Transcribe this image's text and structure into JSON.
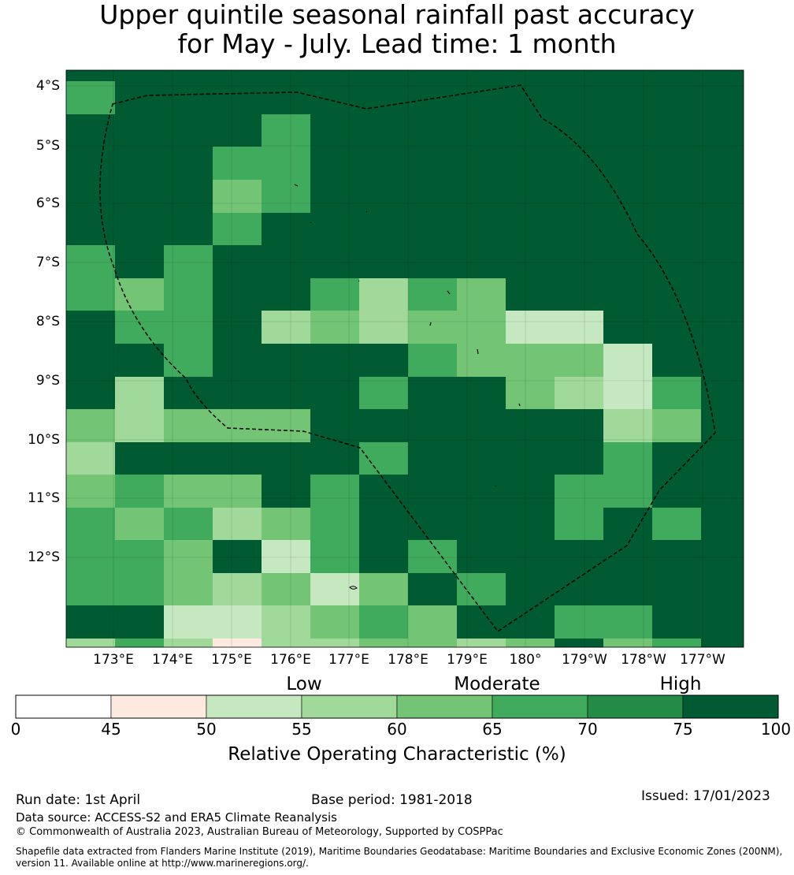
{
  "title": {
    "line1": "Upper quintile seasonal rainfall past accuracy",
    "line2": "for May - July. Lead time: 1 month"
  },
  "map": {
    "lat_labels": [
      "4°S",
      "5°S",
      "6°S",
      "7°S",
      "8°S",
      "9°S",
      "10°S",
      "11°S",
      "12°S"
    ],
    "lon_labels": [
      "173°E",
      "174°E",
      "175°E",
      "176°E",
      "177°E",
      "178°E",
      "179°E",
      "180°",
      "179°W",
      "178°W",
      "177°W"
    ],
    "boundary_line_style": "dashed",
    "grid": [
      [
        100,
        100,
        100,
        100,
        100,
        100,
        100,
        100,
        100,
        100,
        100,
        100,
        100,
        100
      ],
      [
        70,
        100,
        100,
        100,
        100,
        100,
        100,
        100,
        100,
        100,
        100,
        100,
        100,
        100
      ],
      [
        100,
        100,
        100,
        100,
        70,
        100,
        100,
        100,
        100,
        100,
        100,
        100,
        100,
        100
      ],
      [
        100,
        100,
        100,
        70,
        70,
        100,
        100,
        100,
        100,
        100,
        100,
        100,
        100,
        100
      ],
      [
        100,
        100,
        100,
        65,
        70,
        100,
        100,
        100,
        100,
        100,
        100,
        100,
        100,
        100
      ],
      [
        100,
        100,
        100,
        70,
        100,
        100,
        100,
        100,
        100,
        100,
        100,
        100,
        100,
        100
      ],
      [
        70,
        100,
        70,
        100,
        100,
        100,
        100,
        100,
        100,
        100,
        100,
        100,
        100,
        100
      ],
      [
        70,
        65,
        70,
        100,
        100,
        70,
        60,
        70,
        65,
        100,
        100,
        100,
        100,
        100
      ],
      [
        100,
        70,
        70,
        100,
        60,
        65,
        60,
        65,
        65,
        55,
        55,
        100,
        100,
        100
      ],
      [
        100,
        100,
        70,
        100,
        100,
        100,
        100,
        70,
        65,
        65,
        65,
        55,
        100,
        100
      ],
      [
        100,
        60,
        100,
        100,
        100,
        100,
        70,
        100,
        100,
        65,
        60,
        55,
        70,
        100
      ],
      [
        65,
        60,
        65,
        65,
        65,
        100,
        100,
        100,
        100,
        100,
        100,
        60,
        65,
        100
      ],
      [
        60,
        100,
        100,
        100,
        100,
        100,
        70,
        100,
        100,
        100,
        100,
        70,
        100,
        100
      ],
      [
        65,
        70,
        65,
        65,
        100,
        70,
        100,
        100,
        100,
        100,
        70,
        70,
        100,
        100
      ],
      [
        70,
        65,
        70,
        60,
        65,
        70,
        100,
        100,
        100,
        100,
        70,
        100,
        70,
        100
      ],
      [
        70,
        70,
        65,
        100,
        55,
        70,
        100,
        70,
        100,
        100,
        100,
        100,
        100,
        100
      ],
      [
        70,
        70,
        65,
        60,
        65,
        55,
        65,
        100,
        70,
        100,
        100,
        100,
        100,
        100
      ],
      [
        100,
        100,
        55,
        55,
        60,
        65,
        70,
        65,
        100,
        100,
        70,
        70,
        100,
        100
      ],
      [
        60,
        70,
        60,
        50,
        60,
        60,
        65,
        65,
        60,
        65,
        100,
        65,
        70,
        100
      ]
    ]
  },
  "legend": {
    "title": "Relative Operating Characteristic (%)",
    "categories": [
      {
        "label": "Low",
        "from": 50,
        "to": 65
      },
      {
        "label": "Moderate",
        "from": 65,
        "to": 75
      },
      {
        "label": "High",
        "from": 75,
        "to": 100
      }
    ],
    "ticks": [
      "0",
      "45",
      "50",
      "55",
      "60",
      "65",
      "70",
      "75",
      "100"
    ],
    "bins": [
      {
        "from": 0,
        "to": 45,
        "color": "#ffffff"
      },
      {
        "from": 45,
        "to": 50,
        "color": "#fde9df"
      },
      {
        "from": 50,
        "to": 55,
        "color": "#c6e8c0"
      },
      {
        "from": 55,
        "to": 60,
        "color": "#a1d99b"
      },
      {
        "from": 60,
        "to": 65,
        "color": "#74c476"
      },
      {
        "from": 65,
        "to": 70,
        "color": "#41ab5d"
      },
      {
        "from": 70,
        "to": 75,
        "color": "#238b45"
      },
      {
        "from": 75,
        "to": 100,
        "color": "#005a32"
      }
    ]
  },
  "footer": {
    "run_date": "Run date: 1st April",
    "base_period": "Base period: 1981-2018",
    "issued": "Issued: 17/01/2023",
    "data_source": "Data source: ACCESS-S2 and ERA5 Climate Reanalysis",
    "copyright": "© Commonwealth of Australia 2023, Australian Bureau of Meteorology, Supported by COSPPac",
    "shapefile_line1": "Shapefile data extracted from Flanders Marine Institute (2019), Maritime Boundaries Geodatabase: Maritime Boundaries and Exclusive Economic Zones (200NM),",
    "shapefile_line2": "version 11. Available online at http://www.marineregions.org/."
  }
}
